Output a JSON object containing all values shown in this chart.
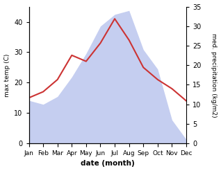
{
  "months": [
    "Jan",
    "Feb",
    "Mar",
    "Apr",
    "May",
    "Jun",
    "Jul",
    "Aug",
    "Sep",
    "Oct",
    "Nov",
    "Dec"
  ],
  "temperature": [
    15,
    17,
    21,
    29,
    27,
    33,
    41,
    34,
    25,
    21,
    18,
    14
  ],
  "precipitation": [
    11,
    10,
    12,
    17,
    23,
    30,
    33,
    34,
    24,
    19,
    6,
    1
  ],
  "temp_color": "#cc3333",
  "precip_fill_color": "#c5cef0",
  "bg_color": "#ffffff",
  "temp_ylim": [
    0,
    45
  ],
  "precip_ylim": [
    0,
    35
  ],
  "temp_yticks": [
    0,
    10,
    20,
    30,
    40
  ],
  "precip_yticks": [
    0,
    5,
    10,
    15,
    20,
    25,
    30,
    35
  ],
  "xlabel": "date (month)",
  "ylabel_left": "max temp (C)",
  "ylabel_right": "med. precipitation (kg/m2)"
}
